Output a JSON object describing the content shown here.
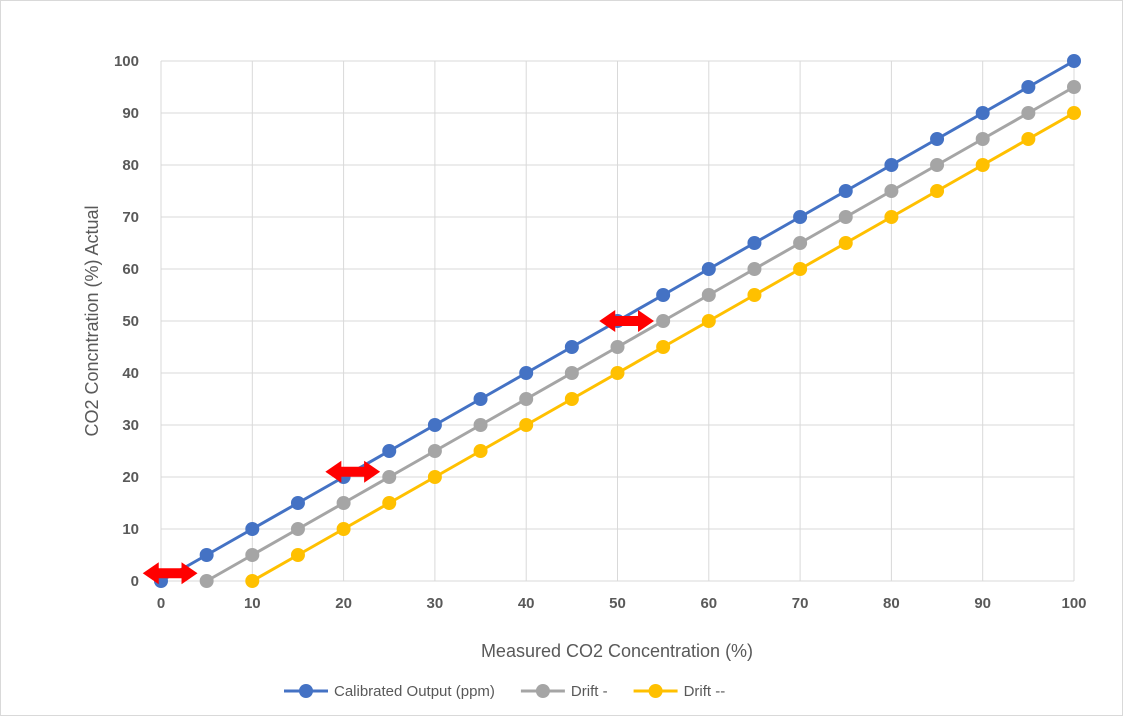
{
  "chart_data": {
    "type": "line",
    "title": "",
    "xlabel": "Measured CO2 Concentration (%)",
    "ylabel": "CO2 Concntration (%) Actual",
    "xlim": [
      0,
      100
    ],
    "ylim": [
      0,
      100
    ],
    "x_ticks": [
      0,
      10,
      20,
      30,
      40,
      50,
      60,
      70,
      80,
      90,
      100
    ],
    "y_ticks": [
      0,
      10,
      20,
      30,
      40,
      50,
      60,
      70,
      80,
      90,
      100
    ],
    "grid": true,
    "legend_position": "bottom",
    "series": [
      {
        "name": "Calibrated Output (ppm)",
        "color": "#4472c4",
        "x": [
          0,
          5,
          10,
          15,
          20,
          25,
          30,
          35,
          40,
          45,
          50,
          55,
          60,
          65,
          70,
          75,
          80,
          85,
          90,
          95,
          100
        ],
        "y": [
          0,
          5,
          10,
          15,
          20,
          25,
          30,
          35,
          40,
          45,
          50,
          55,
          60,
          65,
          70,
          75,
          80,
          85,
          90,
          95,
          100
        ]
      },
      {
        "name": "Drift -",
        "color": "#a5a5a5",
        "x": [
          5,
          10,
          15,
          20,
          25,
          30,
          35,
          40,
          45,
          50,
          55,
          60,
          65,
          70,
          75,
          80,
          85,
          90,
          95,
          100
        ],
        "y": [
          0,
          5,
          10,
          15,
          20,
          25,
          30,
          35,
          40,
          45,
          50,
          55,
          60,
          65,
          70,
          75,
          80,
          85,
          90,
          95
        ]
      },
      {
        "name": "Drift --",
        "color": "#ffc000",
        "x": [
          10,
          15,
          20,
          25,
          30,
          35,
          40,
          45,
          50,
          55,
          60,
          65,
          70,
          75,
          80,
          85,
          90,
          95,
          100
        ],
        "y": [
          0,
          5,
          10,
          15,
          20,
          25,
          30,
          35,
          40,
          45,
          50,
          55,
          60,
          65,
          70,
          75,
          80,
          85,
          90
        ]
      }
    ],
    "annotations": [
      {
        "type": "double-arrow",
        "color": "#ff0000",
        "x_from": -2,
        "x_to": 4,
        "y": 1.5
      },
      {
        "type": "double-arrow",
        "color": "#ff0000",
        "x_from": 18,
        "x_to": 24,
        "y": 21
      },
      {
        "type": "double-arrow",
        "color": "#ff0000",
        "x_from": 48,
        "x_to": 54,
        "y": 50
      }
    ],
    "colors": {
      "grid": "#d9d9d9",
      "text": "#595959",
      "frame": "#d9d9d9"
    }
  }
}
